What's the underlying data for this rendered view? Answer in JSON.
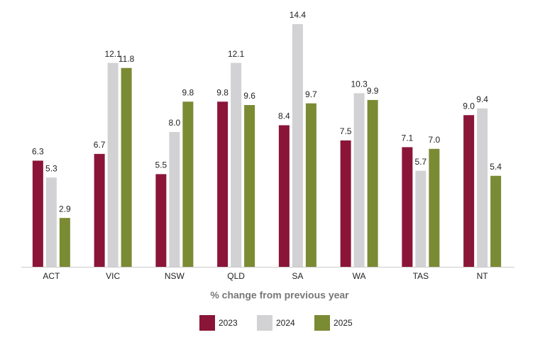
{
  "chart_data": {
    "type": "bar",
    "x_label": "% change from previous year",
    "categories": [
      "ACT",
      "VIC",
      "NSW",
      "QLD",
      "SA",
      "WA",
      "TAS",
      "NT"
    ],
    "series": [
      {
        "name": "2023",
        "color": "#8a1538",
        "values": [
          6.3,
          6.7,
          5.5,
          9.8,
          8.4,
          7.5,
          7.1,
          9.0
        ],
        "value_labels": [
          "6.3",
          "6.7",
          "5.5",
          "9.8",
          "8.4",
          "7.5",
          "7.1",
          "9.0"
        ]
      },
      {
        "name": "2024",
        "color": "#d2d2d4",
        "values": [
          5.3,
          12.1,
          8.0,
          12.1,
          14.4,
          10.3,
          5.7,
          9.4
        ],
        "value_labels": [
          "5.3",
          "12.1",
          "8.0",
          "12.1",
          "14.4",
          "10.3",
          "5.7",
          "9.4"
        ]
      },
      {
        "name": "2025",
        "color": "#7a8b34",
        "values": [
          2.9,
          11.8,
          9.8,
          9.6,
          9.7,
          9.9,
          7.0,
          5.4
        ],
        "value_labels": [
          "2.9",
          "11.8",
          "9.8",
          "9.6",
          "9.7",
          "9.9",
          "7.0",
          "5.4"
        ]
      }
    ],
    "ylim": [
      0,
      15
    ],
    "legend": "bottom"
  }
}
